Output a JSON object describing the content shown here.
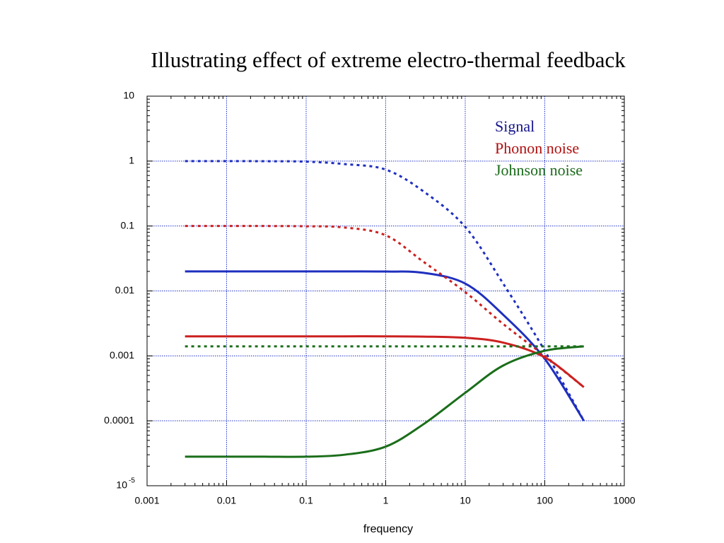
{
  "chart_data": {
    "type": "line",
    "title": "Illustrating effect of extreme electro-thermal feedback",
    "x_label": "frequency",
    "log_x": true,
    "log_y": true,
    "grid": true,
    "legend_position": "upper right",
    "xlim": [
      0.001,
      1000
    ],
    "ylim": [
      1e-05,
      10
    ],
    "xticks": [
      0.001,
      0.01,
      0.1,
      1,
      10,
      100,
      1000
    ],
    "yticks": [
      {
        "value": 1e-05,
        "label": "10",
        "exponent": "-5"
      },
      0.0001,
      0.001,
      0.01,
      0.1,
      1,
      10
    ],
    "x": [
      0.003,
      0.01,
      0.03,
      0.1,
      0.3,
      1,
      3,
      10,
      30,
      100,
      310
    ],
    "series": [
      {
        "name": "Signal",
        "color": "#1f2fbf",
        "legend_color": "#14148a",
        "values": [
          0.02,
          0.02,
          0.02,
          0.02,
          0.02,
          0.0199,
          0.019,
          0.013,
          0.0043,
          0.0009,
          0.0001
        ],
        "values_dashed": [
          1,
          1,
          0.995,
          0.98,
          0.9,
          0.74,
          0.34,
          0.097,
          0.013,
          0.0012,
          0.0001
        ]
      },
      {
        "name": "Phonon noise",
        "color": "#cc2020",
        "legend_color": "#b01010",
        "values": [
          0.002,
          0.002,
          0.002,
          0.002,
          0.002,
          0.002,
          0.00198,
          0.0019,
          0.0016,
          0.00095,
          0.00033
        ],
        "values_dashed": [
          0.1,
          0.1,
          0.1,
          0.099,
          0.095,
          0.072,
          0.028,
          0.0096,
          0.0031,
          0.001,
          0.00033
        ]
      },
      {
        "name": "Johnson noise",
        "color": "#1a6e1a",
        "legend_color": "#1a6a1a",
        "values": [
          2.8e-05,
          2.8e-05,
          2.8e-05,
          2.8e-05,
          3e-05,
          4e-05,
          8.9e-05,
          0.00027,
          0.00071,
          0.0012,
          0.0014
        ],
        "values_dashed": [
          0.0014,
          0.0014,
          0.0014,
          0.0014,
          0.0014,
          0.0014,
          0.0014,
          0.0014,
          0.0014,
          0.0014,
          0.0014
        ]
      }
    ]
  }
}
